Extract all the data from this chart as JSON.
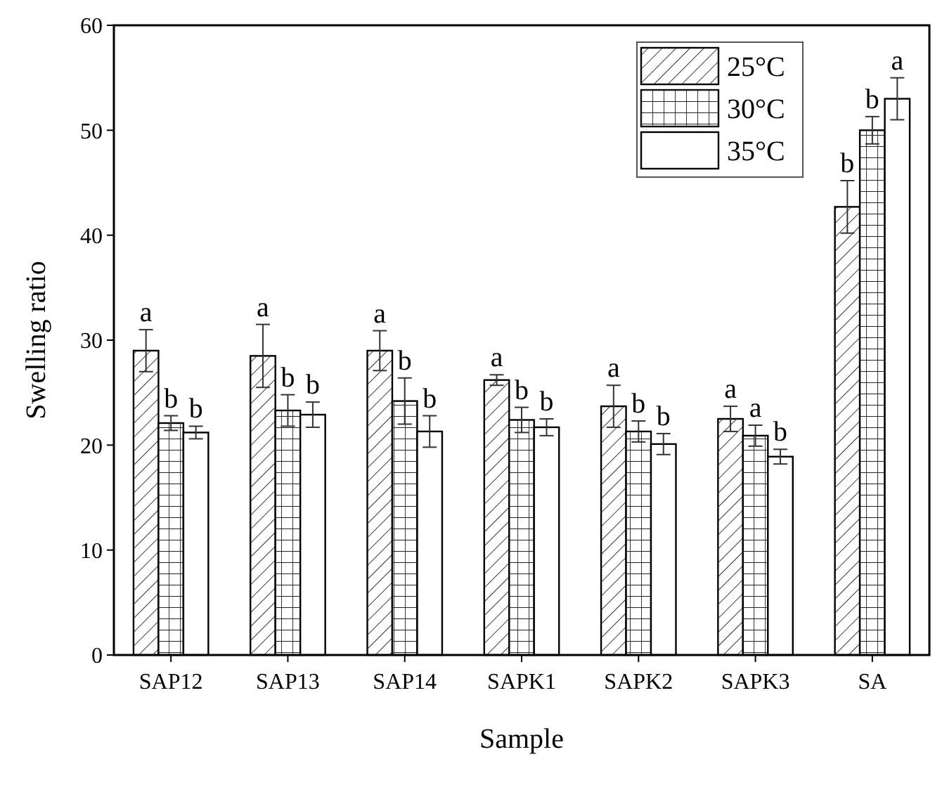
{
  "chart_data": {
    "type": "bar",
    "xlabel": "Sample",
    "ylabel": "Swelling ratio",
    "categories": [
      "SAP12",
      "SAP13",
      "SAP14",
      "SAPK1",
      "SAPK2",
      "SAPK3",
      "SA"
    ],
    "series": [
      {
        "name": "25°C",
        "color": "#ffffff",
        "values": [
          29.0,
          28.5,
          29.0,
          26.2,
          23.7,
          22.5,
          42.7
        ],
        "errors": [
          2.0,
          3.0,
          1.9,
          0.5,
          2.0,
          1.2,
          2.5
        ],
        "value_labels": [
          "a",
          "a",
          "a",
          "a",
          "a",
          "a",
          "b"
        ]
      },
      {
        "name": "30°C",
        "color": "#ffffff",
        "values": [
          22.1,
          23.3,
          24.2,
          22.4,
          21.3,
          20.9,
          50.0
        ],
        "errors": [
          0.7,
          1.5,
          2.2,
          1.2,
          1.0,
          1.0,
          1.3
        ],
        "value_labels": [
          "b",
          "b",
          "b",
          "b",
          "b",
          "a",
          "b"
        ]
      },
      {
        "name": "35°C",
        "color": "#ffffff",
        "values": [
          21.2,
          22.9,
          21.3,
          21.7,
          20.1,
          18.9,
          53.0
        ],
        "errors": [
          0.6,
          1.2,
          1.5,
          0.8,
          1.0,
          0.7,
          2.0
        ],
        "value_labels": [
          "b",
          "b",
          "b",
          "b",
          "b",
          "b",
          "a"
        ]
      }
    ],
    "ylim": [
      0,
      60
    ],
    "yticks": [
      0,
      10,
      20,
      30,
      40,
      50,
      60
    ],
    "legend": "top right"
  }
}
